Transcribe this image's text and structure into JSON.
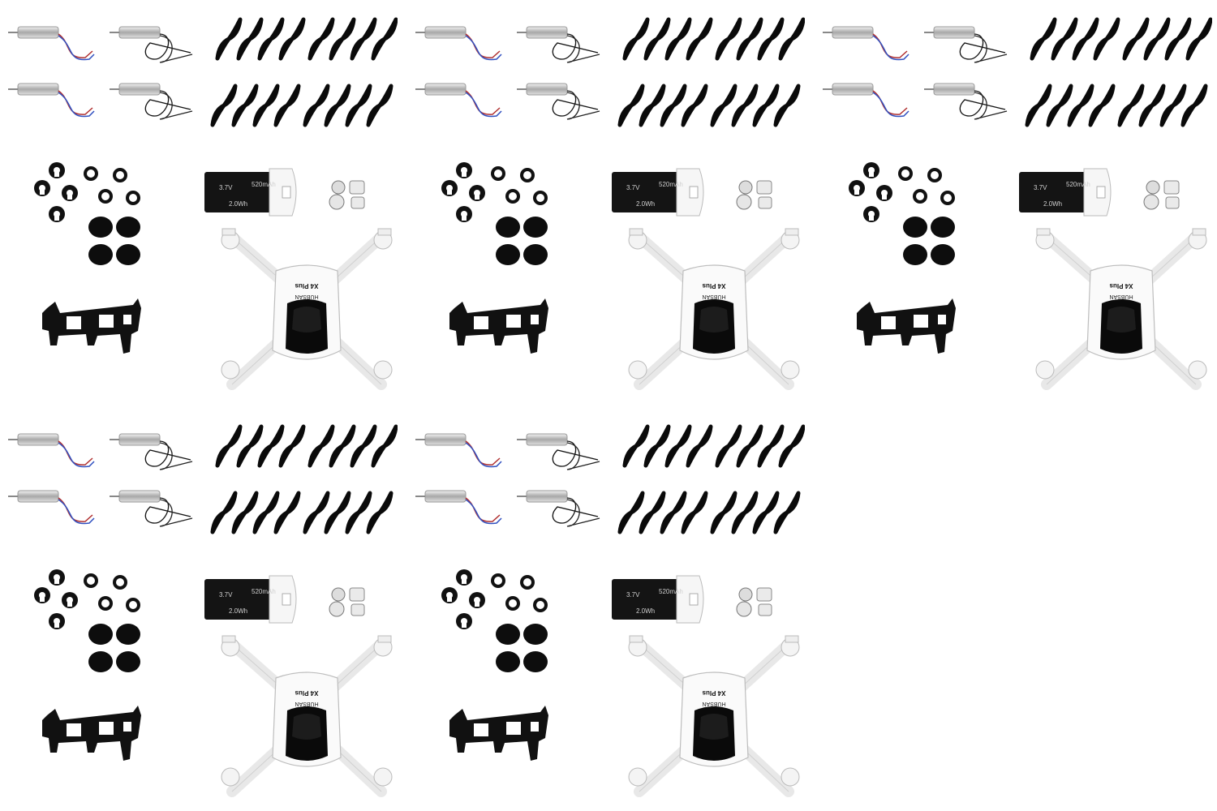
{
  "kits": [
    {
      "battery": {
        "voltage": "3.7V",
        "capacity": "520mAh",
        "energy": "2.0Wh"
      },
      "brand_logo": "HUBSAN",
      "model_logo": "X4 Plus"
    },
    {
      "battery": {
        "voltage": "3.7V",
        "capacity": "520mAh",
        "energy": "2.0Wh"
      },
      "brand_logo": "HUBSAN",
      "model_logo": "X4 Plus"
    },
    {
      "battery": {
        "voltage": "3.7V",
        "capacity": "520mAh",
        "energy": "2.0Wh"
      },
      "brand_logo": "HUBSAN",
      "model_logo": "X4 Plus"
    },
    {
      "battery": {
        "voltage": "3.7V",
        "capacity": "520mAh",
        "energy": "2.0Wh"
      },
      "brand_logo": "HUBSAN",
      "model_logo": "X4 Plus"
    },
    {
      "battery": {
        "voltage": "3.7V",
        "capacity": "520mAh",
        "energy": "2.0Wh"
      },
      "brand_logo": "HUBSAN",
      "model_logo": "X4 Plus"
    }
  ],
  "colors": {
    "background": "#ffffff",
    "parts": "#0a0a0a",
    "shell": "#ffffff",
    "motor": "#c9c9c9"
  }
}
